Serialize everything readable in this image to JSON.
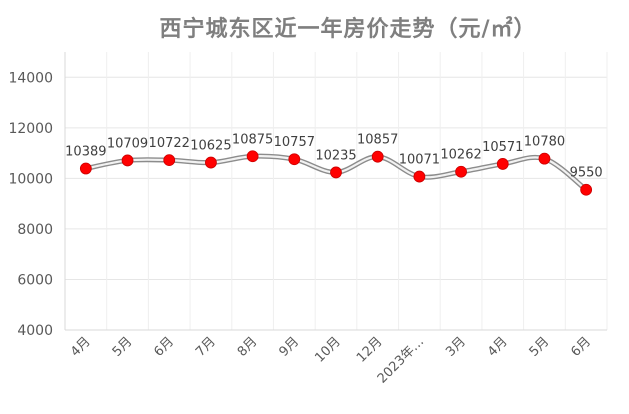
{
  "chart_data": {
    "type": "line",
    "title": "西宁城东区近一年房价走势（元/㎡）",
    "xlabel": "",
    "ylabel": "",
    "ylim": [
      4000,
      15000
    ],
    "yticks": [
      4000,
      6000,
      8000,
      10000,
      12000,
      14000
    ],
    "grid": true,
    "legend": "none",
    "smooth": true,
    "categories": [
      "4月",
      "5月",
      "6月",
      "7月",
      "8月",
      "9月",
      "10月",
      "12月",
      "2023年…",
      "3月",
      "4月",
      "5月",
      "6月"
    ],
    "values": [
      10389,
      10709,
      10722,
      10625,
      10875,
      10757,
      10235,
      10857,
      10071,
      10262,
      10571,
      10780,
      9550
    ],
    "colors": {
      "marker": "#ff0000",
      "line": "#a6a6a6",
      "grid": "#e6e6e6",
      "title": "#7f7f7f",
      "axis_text": "#595959"
    }
  }
}
